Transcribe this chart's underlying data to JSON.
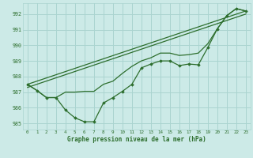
{
  "title": "Graphe pression niveau de la mer (hPa)",
  "bg_color": "#cceae7",
  "grid_color": "#aad4d0",
  "line_color": "#2d6e2d",
  "marker_color": "#2d6e2d",
  "xlim": [
    -0.5,
    23.5
  ],
  "ylim": [
    984.6,
    992.7
  ],
  "yticks": [
    985,
    986,
    987,
    988,
    989,
    990,
    991,
    992
  ],
  "xticks": [
    0,
    1,
    2,
    3,
    4,
    5,
    6,
    7,
    8,
    9,
    10,
    11,
    12,
    13,
    14,
    15,
    16,
    17,
    18,
    19,
    20,
    21,
    22,
    23
  ],
  "series_main": [
    987.5,
    987.1,
    986.65,
    986.65,
    985.85,
    985.35,
    985.1,
    985.1,
    986.3,
    986.65,
    987.05,
    987.5,
    988.55,
    988.8,
    989.0,
    989.0,
    988.7,
    988.8,
    988.75,
    989.85,
    991.05,
    991.9,
    992.35,
    992.2
  ],
  "series_smooth": [
    987.5,
    987.1,
    986.65,
    986.65,
    987.0,
    987.0,
    987.05,
    987.05,
    987.5,
    987.7,
    988.2,
    988.65,
    989.0,
    989.2,
    989.5,
    989.5,
    989.35,
    989.4,
    989.5,
    990.1,
    991.05,
    991.9,
    992.35,
    992.2
  ],
  "trend1_x": [
    0,
    23
  ],
  "trend1_y": [
    987.5,
    992.2
  ],
  "trend2_x": [
    0,
    23
  ],
  "trend2_y": [
    987.3,
    992.0
  ]
}
